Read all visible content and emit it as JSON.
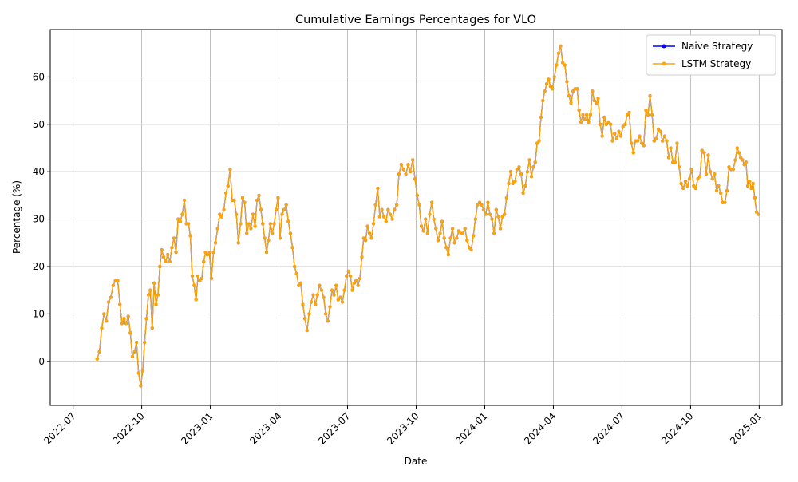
{
  "chart_data": {
    "type": "line",
    "title": "Cumulative Earnings Percentages for VLO",
    "x_label": "Date",
    "y_label": "Percentage (%)",
    "x": [
      "2022-08",
      "2022-08",
      "2022-08",
      "2022-08",
      "2022-08",
      "2022-08",
      "2022-08",
      "2022-08",
      "2022-08",
      "2022-08",
      "2022-09",
      "2022-09",
      "2022-09",
      "2022-09",
      "2022-09",
      "2022-09",
      "2022-09",
      "2022-09",
      "2022-09",
      "2022-09",
      "2022-09",
      "2022-10",
      "2022-10",
      "2022-10",
      "2022-10",
      "2022-10",
      "2022-10",
      "2022-10",
      "2022-10",
      "2022-10",
      "2022-10",
      "2022-10",
      "2022-10",
      "2022-11",
      "2022-11",
      "2022-11",
      "2022-11",
      "2022-11",
      "2022-11",
      "2022-11",
      "2022-11",
      "2022-11",
      "2022-11",
      "2022-11",
      "2022-12",
      "2022-12",
      "2022-12",
      "2022-12",
      "2022-12",
      "2022-12",
      "2022-12",
      "2022-12",
      "2022-12",
      "2022-12",
      "2022-12",
      "2022-12",
      "2023-01",
      "2023-01",
      "2023-01",
      "2023-01",
      "2023-01",
      "2023-01",
      "2023-01",
      "2023-01",
      "2023-01",
      "2023-01",
      "2023-01",
      "2023-02",
      "2023-02",
      "2023-02",
      "2023-02",
      "2023-02",
      "2023-02",
      "2023-02",
      "2023-02",
      "2023-02",
      "2023-02",
      "2023-02",
      "2023-03",
      "2023-03",
      "2023-03",
      "2023-03",
      "2023-03",
      "2023-03",
      "2023-03",
      "2023-03",
      "2023-03",
      "2023-03",
      "2023-03",
      "2023-03",
      "2023-04",
      "2023-04",
      "2023-04",
      "2023-04",
      "2023-04",
      "2023-04",
      "2023-04",
      "2023-04",
      "2023-04",
      "2023-04",
      "2023-04",
      "2023-05",
      "2023-05",
      "2023-05",
      "2023-05",
      "2023-05",
      "2023-05",
      "2023-05",
      "2023-05",
      "2023-05",
      "2023-05",
      "2023-05",
      "2023-06",
      "2023-06",
      "2023-06",
      "2023-06",
      "2023-06",
      "2023-06",
      "2023-06",
      "2023-06",
      "2023-06",
      "2023-06",
      "2023-06",
      "2023-07",
      "2023-07",
      "2023-07",
      "2023-07",
      "2023-07",
      "2023-07",
      "2023-07",
      "2023-07",
      "2023-07",
      "2023-07",
      "2023-07",
      "2023-07",
      "2023-08",
      "2023-08",
      "2023-08",
      "2023-08",
      "2023-08",
      "2023-08",
      "2023-08",
      "2023-08",
      "2023-08",
      "2023-08",
      "2023-08",
      "2023-09",
      "2023-09",
      "2023-09",
      "2023-09",
      "2023-09",
      "2023-09",
      "2023-09",
      "2023-09",
      "2023-09",
      "2023-09",
      "2023-10",
      "2023-10",
      "2023-10",
      "2023-10",
      "2023-10",
      "2023-10",
      "2023-10",
      "2023-10",
      "2023-10",
      "2023-10",
      "2023-10",
      "2023-11",
      "2023-11",
      "2023-11",
      "2023-11",
      "2023-11",
      "2023-11",
      "2023-11",
      "2023-11",
      "2023-11",
      "2023-11",
      "2023-11",
      "2023-12",
      "2023-12",
      "2023-12",
      "2023-12",
      "2023-12",
      "2023-12",
      "2023-12",
      "2023-12",
      "2023-12",
      "2023-12",
      "2023-12",
      "2024-01",
      "2024-01",
      "2024-01",
      "2024-01",
      "2024-01",
      "2024-01",
      "2024-01",
      "2024-01",
      "2024-01",
      "2024-01",
      "2024-01",
      "2024-02",
      "2024-02",
      "2024-02",
      "2024-02",
      "2024-02",
      "2024-02",
      "2024-02",
      "2024-02",
      "2024-02",
      "2024-02",
      "2024-02",
      "2024-03",
      "2024-03",
      "2024-03",
      "2024-03",
      "2024-03",
      "2024-03",
      "2024-03",
      "2024-03",
      "2024-03",
      "2024-03",
      "2024-03",
      "2024-03",
      "2024-04",
      "2024-04",
      "2024-04",
      "2024-04",
      "2024-04",
      "2024-04",
      "2024-04",
      "2024-04",
      "2024-04",
      "2024-04",
      "2024-04",
      "2024-05",
      "2024-05",
      "2024-05",
      "2024-05",
      "2024-05",
      "2024-05",
      "2024-05",
      "2024-05",
      "2024-05",
      "2024-05",
      "2024-05",
      "2024-05",
      "2024-06",
      "2024-06",
      "2024-06",
      "2024-06",
      "2024-06",
      "2024-06",
      "2024-06",
      "2024-06",
      "2024-06",
      "2024-06",
      "2024-06",
      "2024-07",
      "2024-07",
      "2024-07",
      "2024-07",
      "2024-07",
      "2024-07",
      "2024-07",
      "2024-07",
      "2024-07",
      "2024-07",
      "2024-07",
      "2024-08",
      "2024-08",
      "2024-08",
      "2024-08",
      "2024-08",
      "2024-08",
      "2024-08",
      "2024-08",
      "2024-08",
      "2024-08",
      "2024-08",
      "2024-09",
      "2024-09",
      "2024-09",
      "2024-09",
      "2024-09",
      "2024-09",
      "2024-09",
      "2024-09",
      "2024-09",
      "2024-09",
      "2024-09",
      "2024-10",
      "2024-10",
      "2024-10",
      "2024-10",
      "2024-10",
      "2024-10",
      "2024-10",
      "2024-10",
      "2024-10",
      "2024-10",
      "2024-10",
      "2024-11",
      "2024-11",
      "2024-11",
      "2024-11",
      "2024-11",
      "2024-11",
      "2024-11",
      "2024-11",
      "2024-11",
      "2024-11",
      "2024-11",
      "2024-12",
      "2024-12",
      "2024-12",
      "2024-12",
      "2024-12",
      "2024-12",
      "2024-12",
      "2024-12",
      "2024-12",
      "2024-12",
      "2024-12",
      "2024-12",
      "2024-12"
    ],
    "series": [
      {
        "name": "Naive Strategy",
        "color": "#0000ff",
        "values": [
          0.5,
          2,
          7,
          10,
          8.5,
          12.5,
          13.5,
          16,
          17,
          17,
          12,
          8,
          9,
          8,
          9.5,
          6,
          1,
          2,
          4,
          -2.5,
          -5.2,
          -2,
          4,
          9,
          14,
          15,
          7,
          16.5,
          12,
          14,
          20,
          23.5,
          22,
          21,
          22.5,
          21,
          24,
          26,
          23,
          30,
          29.5,
          31,
          34,
          29,
          29,
          26.5,
          18,
          16,
          13,
          18,
          17,
          17.5,
          21,
          23,
          22.5,
          23,
          17.5,
          23,
          25,
          28,
          31,
          30.5,
          32,
          35.5,
          37,
          40.5,
          34,
          34,
          31,
          25,
          29,
          34.5,
          33.5,
          27,
          29,
          28,
          31,
          28.5,
          34,
          35,
          32,
          29,
          26,
          23,
          25.5,
          29,
          27,
          29,
          32,
          34.5,
          26,
          31,
          32,
          33,
          29.5,
          27,
          24,
          20,
          18.5,
          16,
          16.5,
          12,
          9,
          6.5,
          10,
          12.5,
          14,
          12,
          14,
          16,
          15,
          13.5,
          10,
          8.5,
          11.5,
          15,
          14,
          16,
          13,
          13.5,
          12.5,
          15,
          18,
          19,
          18,
          15,
          16.5,
          17,
          16,
          17.5,
          22,
          26,
          25.5,
          28.5,
          27,
          26,
          29,
          33,
          36.5,
          30.5,
          32,
          30.5,
          29.5,
          32,
          31,
          30,
          32,
          33,
          39.5,
          41.5,
          40.5,
          39.5,
          41.5,
          40,
          42.5,
          38.5,
          35,
          33,
          28.5,
          27.5,
          30,
          27,
          31,
          33.5,
          30,
          28,
          25.5,
          27,
          29.5,
          26,
          24,
          22.5,
          26,
          28,
          25,
          26,
          27.5,
          27,
          27,
          28,
          25.5,
          24,
          23.5,
          26.5,
          30,
          33,
          33.5,
          33,
          32,
          31,
          33.5,
          31,
          30,
          27,
          32,
          30.5,
          28,
          30.5,
          31,
          34.5,
          37.5,
          40,
          37.5,
          38,
          40.5,
          41,
          39.5,
          35.5,
          37,
          40,
          42.5,
          39,
          41,
          42,
          46,
          46.5,
          51.5,
          55,
          57,
          58.5,
          59.5,
          58,
          57.5,
          60,
          62.5,
          65,
          66.5,
          63,
          62.5,
          59,
          56,
          54.5,
          57,
          57.5,
          57.5,
          53,
          50.5,
          52,
          51,
          52,
          50.5,
          52,
          57,
          55,
          54.5,
          55.5,
          50,
          47.5,
          51.5,
          50,
          50.5,
          50,
          46.5,
          48,
          47,
          48.5,
          47.5,
          49.5,
          50,
          52,
          52.5,
          46,
          44,
          46.5,
          46.5,
          47.5,
          46,
          45.5,
          53,
          52,
          56,
          52,
          46.5,
          47,
          49,
          48.5,
          46.5,
          47.5,
          46.5,
          43,
          45,
          42,
          42,
          46,
          41,
          37.5,
          36.5,
          38,
          37,
          38.5,
          40.5,
          37,
          36.5,
          38.5,
          39,
          44.5,
          44,
          39.5,
          43.5,
          40,
          38.5,
          39.5,
          36,
          37,
          35.5,
          33.5,
          33.5,
          36,
          41,
          40.5,
          40.5,
          42.5,
          45,
          44,
          43,
          42.5,
          41.5,
          42,
          37,
          38,
          36.5,
          37.5,
          34.5,
          31.5,
          31
        ]
      },
      {
        "name": "LSTM Strategy",
        "color": "#ffa500",
        "values": [
          0.5,
          2,
          7,
          10,
          8.5,
          12.5,
          13.5,
          16,
          17,
          17,
          12,
          8,
          9,
          8,
          9.5,
          6,
          1,
          2,
          4,
          -2.5,
          -5.2,
          -2,
          4,
          9,
          14,
          15,
          7,
          16.5,
          12,
          14,
          20,
          23.5,
          22,
          21,
          22.5,
          21,
          24,
          26,
          23,
          30,
          29.5,
          31,
          34,
          29,
          29,
          26.5,
          18,
          16,
          13,
          18,
          17,
          17.5,
          21,
          23,
          22.5,
          23,
          17.5,
          23,
          25,
          28,
          31,
          30.5,
          32,
          35.5,
          37,
          40.5,
          34,
          34,
          31,
          25,
          29,
          34.5,
          33.5,
          27,
          29,
          28,
          31,
          28.5,
          34,
          35,
          32,
          29,
          26,
          23,
          25.5,
          29,
          27,
          29,
          32,
          34.5,
          26,
          31,
          32,
          33,
          29.5,
          27,
          24,
          20,
          18.5,
          16,
          16.5,
          12,
          9,
          6.5,
          10,
          12.5,
          14,
          12,
          14,
          16,
          15,
          13.5,
          10,
          8.5,
          11.5,
          15,
          14,
          16,
          13,
          13.5,
          12.5,
          15,
          18,
          19,
          18,
          15,
          16.5,
          17,
          16,
          17.5,
          22,
          26,
          25.5,
          28.5,
          27,
          26,
          29,
          33,
          36.5,
          30.5,
          32,
          30.5,
          29.5,
          32,
          31,
          30,
          32,
          33,
          39.5,
          41.5,
          40.5,
          39.5,
          41.5,
          40,
          42.5,
          38.5,
          35,
          33,
          28.5,
          27.5,
          30,
          27,
          31,
          33.5,
          30,
          28,
          25.5,
          27,
          29.5,
          26,
          24,
          22.5,
          26,
          28,
          25,
          26,
          27.5,
          27,
          27,
          28,
          25.5,
          24,
          23.5,
          26.5,
          30,
          33,
          33.5,
          33,
          32,
          31,
          33.5,
          31,
          30,
          27,
          32,
          30.5,
          28,
          30.5,
          31,
          34.5,
          37.5,
          40,
          37.5,
          38,
          40.5,
          41,
          39.5,
          35.5,
          37,
          40,
          42.5,
          39,
          41,
          42,
          46,
          46.5,
          51.5,
          55,
          57,
          58.5,
          59.5,
          58,
          57.5,
          60,
          62.5,
          65,
          66.5,
          63,
          62.5,
          59,
          56,
          54.5,
          57,
          57.5,
          57.5,
          53,
          50.5,
          52,
          51,
          52,
          50.5,
          52,
          57,
          55,
          54.5,
          55.5,
          50,
          47.5,
          51.5,
          50,
          50.5,
          50,
          46.5,
          48,
          47,
          48.5,
          47.5,
          49.5,
          50,
          52,
          52.5,
          46,
          44,
          46.5,
          46.5,
          47.5,
          46,
          45.5,
          53,
          52,
          56,
          52,
          46.5,
          47,
          49,
          48.5,
          46.5,
          47.5,
          46.5,
          43,
          45,
          42,
          42,
          46,
          41,
          37.5,
          36.5,
          38,
          37,
          38.5,
          40.5,
          37,
          36.5,
          38.5,
          39,
          44.5,
          44,
          39.5,
          43.5,
          40,
          38.5,
          39.5,
          36,
          37,
          35.5,
          33.5,
          33.5,
          36,
          41,
          40.5,
          40.5,
          42.5,
          45,
          44,
          43,
          42.5,
          41.5,
          42,
          37,
          38,
          36.5,
          37.5,
          34.5,
          31.5,
          31
        ]
      }
    ],
    "xlim": [
      "2022-06",
      "2025-02"
    ],
    "xticks": [
      "2022-07",
      "2022-10",
      "2023-01",
      "2023-04",
      "2023-07",
      "2023-10",
      "2024-01",
      "2024-04",
      "2024-07",
      "2024-10",
      "2025-01"
    ],
    "ylim": [
      -9.3,
      70
    ],
    "yticks": [
      0,
      10,
      20,
      30,
      40,
      50,
      60
    ],
    "grid": true,
    "legend": "upper right"
  }
}
